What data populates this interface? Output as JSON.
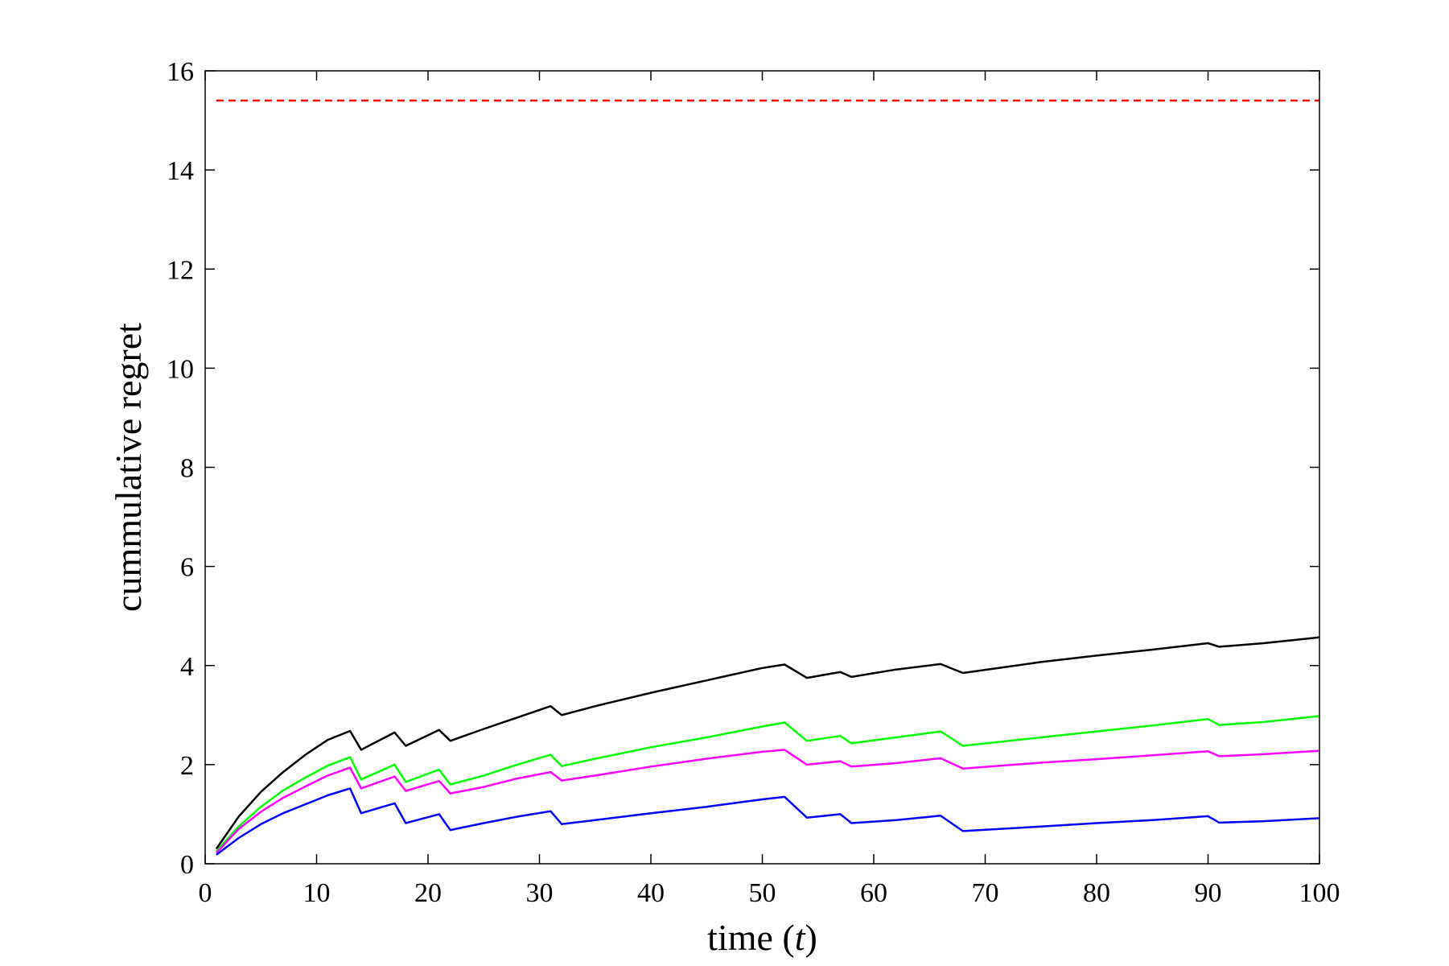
{
  "chart_data": {
    "type": "line",
    "title": "",
    "xlabel": "time (t)",
    "xlabel_parts": {
      "prefix": "time (",
      "variable": "t",
      "suffix": ")"
    },
    "ylabel": "cummulative regret",
    "xlim": [
      0,
      100
    ],
    "ylim": [
      0,
      16
    ],
    "xticks": [
      "0",
      "10",
      "20",
      "30",
      "40",
      "50",
      "60",
      "70",
      "80",
      "90",
      "100"
    ],
    "yticks": [
      "0",
      "2",
      "4",
      "6",
      "8",
      "10",
      "12",
      "14",
      "16"
    ],
    "grid": false,
    "legend": "none",
    "series": [
      {
        "color": "#ff0000",
        "style": "dashed",
        "x": [
          1,
          100
        ],
        "y": [
          15.4,
          15.4
        ]
      },
      {
        "color": "#000000",
        "style": "solid",
        "x": [
          1,
          3,
          5,
          7,
          9,
          11,
          13,
          14,
          17,
          18,
          21,
          22,
          25,
          28,
          31,
          32,
          35,
          40,
          45,
          50,
          52,
          54,
          57,
          58,
          62,
          66,
          68,
          75,
          80,
          85,
          90,
          91,
          95,
          100
        ],
        "y": [
          0.3,
          0.95,
          1.45,
          1.85,
          2.2,
          2.5,
          2.68,
          2.3,
          2.65,
          2.38,
          2.7,
          2.48,
          2.72,
          2.95,
          3.18,
          3.0,
          3.18,
          3.45,
          3.7,
          3.95,
          4.02,
          3.75,
          3.87,
          3.77,
          3.92,
          4.03,
          3.85,
          4.07,
          4.2,
          4.32,
          4.45,
          4.38,
          4.45,
          4.57
        ]
      },
      {
        "color": "#00ff00",
        "style": "solid",
        "x": [
          1,
          3,
          5,
          7,
          9,
          11,
          13,
          14,
          17,
          18,
          21,
          22,
          25,
          28,
          31,
          32,
          35,
          40,
          45,
          50,
          52,
          54,
          57,
          58,
          62,
          66,
          68,
          75,
          80,
          85,
          90,
          91,
          95,
          100
        ],
        "y": [
          0.25,
          0.75,
          1.15,
          1.48,
          1.74,
          1.98,
          2.15,
          1.7,
          2.0,
          1.65,
          1.9,
          1.6,
          1.78,
          2.0,
          2.2,
          1.97,
          2.12,
          2.35,
          2.55,
          2.77,
          2.85,
          2.48,
          2.58,
          2.43,
          2.55,
          2.67,
          2.38,
          2.55,
          2.67,
          2.79,
          2.92,
          2.8,
          2.86,
          2.98
        ]
      },
      {
        "color": "#ff00ff",
        "style": "solid",
        "x": [
          1,
          3,
          5,
          7,
          9,
          11,
          13,
          14,
          17,
          18,
          21,
          22,
          25,
          28,
          31,
          32,
          35,
          40,
          45,
          50,
          52,
          54,
          57,
          58,
          62,
          66,
          68,
          75,
          80,
          85,
          90,
          91,
          95,
          100
        ],
        "y": [
          0.22,
          0.7,
          1.05,
          1.33,
          1.56,
          1.78,
          1.94,
          1.52,
          1.76,
          1.47,
          1.67,
          1.42,
          1.55,
          1.72,
          1.85,
          1.68,
          1.78,
          1.96,
          2.12,
          2.26,
          2.3,
          2.0,
          2.07,
          1.96,
          2.03,
          2.13,
          1.92,
          2.04,
          2.11,
          2.19,
          2.27,
          2.17,
          2.21,
          2.28
        ]
      },
      {
        "color": "#0000ff",
        "style": "solid",
        "x": [
          1,
          3,
          5,
          7,
          9,
          11,
          13,
          14,
          17,
          18,
          21,
          22,
          25,
          28,
          31,
          32,
          35,
          40,
          45,
          50,
          52,
          54,
          57,
          58,
          62,
          66,
          68,
          75,
          80,
          85,
          90,
          91,
          95,
          100
        ],
        "y": [
          0.18,
          0.52,
          0.8,
          1.02,
          1.2,
          1.38,
          1.52,
          1.02,
          1.22,
          0.82,
          1.0,
          0.68,
          0.82,
          0.95,
          1.06,
          0.8,
          0.88,
          1.02,
          1.15,
          1.3,
          1.35,
          0.93,
          1.0,
          0.82,
          0.88,
          0.97,
          0.66,
          0.75,
          0.82,
          0.88,
          0.96,
          0.83,
          0.86,
          0.92
        ]
      }
    ]
  }
}
